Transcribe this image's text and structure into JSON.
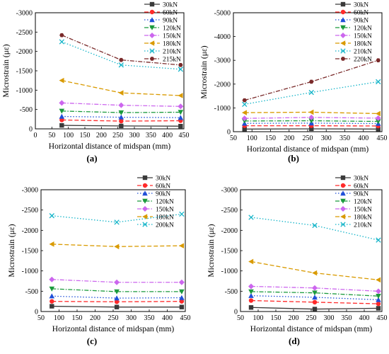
{
  "styles": {
    "30kN": {
      "color": "#3a3a3a",
      "marker": "square",
      "dash": "solid"
    },
    "60kN": {
      "color": "#ff2a2a",
      "marker": "circle",
      "dash": "dash"
    },
    "90kN": {
      "color": "#1f4fd8",
      "marker": "triangle-up",
      "dash": "dot"
    },
    "120kN": {
      "color": "#1a9a3c",
      "marker": "triangle-down",
      "dash": "dashdot"
    },
    "150kN": {
      "color": "#cc66ee",
      "marker": "diamond",
      "dash": "dashdot"
    },
    "180kN": {
      "color": "#d99a00",
      "marker": "triangle-left",
      "dash": "dash"
    },
    "210kN": {
      "color": "#16b5c9",
      "marker": "x",
      "dash": "dot"
    },
    "215kN": {
      "color": "#7a2a2a",
      "marker": "hexagon",
      "dash": "dashdot"
    },
    "220kN": {
      "color": "#7a2a2a",
      "marker": "hexagon",
      "dash": "dashdot"
    },
    "200kN": {
      "color": "#16b5c9",
      "marker": "x",
      "dash": "dot"
    }
  },
  "chart_data": [
    {
      "type": "line",
      "panel_label": "(a)",
      "xlabel": "Horizontal distance of midspan (mm)",
      "ylabel": "Microstrain (με)",
      "xlim": [
        0,
        450
      ],
      "xticks": [
        0,
        50,
        100,
        150,
        200,
        250,
        300,
        350,
        400,
        450
      ],
      "ylim": [
        0,
        -3000
      ],
      "yticks": [
        0,
        -500,
        -1000,
        -1500,
        -2000,
        -2500,
        -3000
      ],
      "x": [
        80,
        260,
        440
      ],
      "legend_position": "top-right",
      "series": [
        {
          "name": "30kN",
          "values": [
            -90,
            -75,
            -70
          ]
        },
        {
          "name": "60kN",
          "values": [
            -230,
            -200,
            -210
          ]
        },
        {
          "name": "90kN",
          "values": [
            -320,
            -300,
            -290
          ]
        },
        {
          "name": "120kN",
          "values": [
            -460,
            -420,
            -430
          ]
        },
        {
          "name": "150kN",
          "values": [
            -670,
            -610,
            -580
          ]
        },
        {
          "name": "180kN",
          "values": [
            -1250,
            -930,
            -860
          ]
        },
        {
          "name": "210kN",
          "values": [
            -2250,
            -1650,
            -1540
          ]
        },
        {
          "name": "215kN",
          "values": [
            -2420,
            -1780,
            -1650
          ]
        }
      ]
    },
    {
      "type": "line",
      "panel_label": "(b)",
      "xlabel": "Horizontal distance of midspan (mm)",
      "ylabel": "Microstrain (με)",
      "xlim": [
        50,
        450
      ],
      "xticks": [
        50,
        100,
        150,
        200,
        250,
        300,
        350,
        400,
        450
      ],
      "ylim": [
        0,
        -5000
      ],
      "yticks": [
        0,
        -1000,
        -2000,
        -3000,
        -4000,
        -5000
      ],
      "x": [
        80,
        260,
        440
      ],
      "legend_position": "top-right",
      "series": [
        {
          "name": "30kN",
          "values": [
            -110,
            -120,
            -110
          ]
        },
        {
          "name": "60kN",
          "values": [
            -250,
            -250,
            -240
          ]
        },
        {
          "name": "90kN",
          "values": [
            -350,
            -360,
            -340
          ]
        },
        {
          "name": "120kN",
          "values": [
            -450,
            -460,
            -430
          ]
        },
        {
          "name": "150kN",
          "values": [
            -560,
            -600,
            -570
          ]
        },
        {
          "name": "180kN",
          "values": [
            -800,
            -820,
            -760
          ]
        },
        {
          "name": "210kN",
          "values": [
            -1150,
            -1650,
            -2100
          ]
        },
        {
          "name": "220kN",
          "values": [
            -1320,
            -2100,
            -3000
          ]
        }
      ]
    },
    {
      "type": "line",
      "panel_label": "(c)",
      "xlabel": "Horizontal distance of midspan (mm)",
      "ylabel": "Microstrain (με)",
      "xlim": [
        50,
        450
      ],
      "xticks": [
        50,
        100,
        150,
        200,
        250,
        300,
        350,
        400,
        450
      ],
      "ylim": [
        0,
        -3000
      ],
      "yticks": [
        0,
        -500,
        -1000,
        -1500,
        -2000,
        -2500,
        -3000
      ],
      "x": [
        80,
        260,
        440
      ],
      "legend_position": "top-right",
      "series": [
        {
          "name": "30kN",
          "values": [
            -130,
            -110,
            -110
          ]
        },
        {
          "name": "60kN",
          "values": [
            -250,
            -240,
            -250
          ]
        },
        {
          "name": "90kN",
          "values": [
            -380,
            -330,
            -340
          ]
        },
        {
          "name": "120kN",
          "values": [
            -560,
            -490,
            -490
          ]
        },
        {
          "name": "150kN",
          "values": [
            -790,
            -720,
            -720
          ]
        },
        {
          "name": "180kN",
          "values": [
            -1660,
            -1600,
            -1620
          ]
        },
        {
          "name": "200kN",
          "values": [
            -2360,
            -2200,
            -2400
          ]
        }
      ]
    },
    {
      "type": "line",
      "panel_label": "(d)",
      "xlabel": "Horizontal distance of midspan (mm)",
      "ylabel": "Microstrain (με)",
      "xlim": [
        50,
        450
      ],
      "xticks": [
        50,
        100,
        150,
        200,
        250,
        300,
        350,
        400,
        450
      ],
      "ylim": [
        0,
        -3000
      ],
      "yticks": [
        0,
        -500,
        -1000,
        -1500,
        -2000,
        -2500,
        -3000
      ],
      "x": [
        80,
        260,
        440
      ],
      "legend_position": "top-right",
      "series": [
        {
          "name": "30kN",
          "values": [
            -100,
            -60,
            -80
          ]
        },
        {
          "name": "60kN",
          "values": [
            -270,
            -230,
            -190
          ]
        },
        {
          "name": "90kN",
          "values": [
            -390,
            -350,
            -290
          ]
        },
        {
          "name": "120kN",
          "values": [
            -490,
            -460,
            -380
          ]
        },
        {
          "name": "150kN",
          "values": [
            -620,
            -580,
            -500
          ]
        },
        {
          "name": "180kN",
          "values": [
            -1230,
            -950,
            -780
          ]
        },
        {
          "name": "210kN",
          "values": [
            -2320,
            -2120,
            -1760
          ]
        }
      ]
    }
  ]
}
